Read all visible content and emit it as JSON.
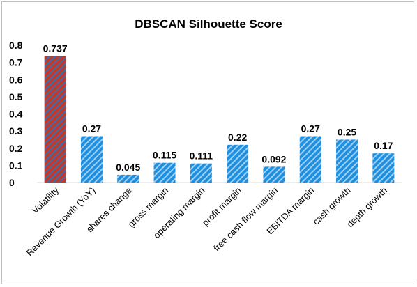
{
  "chart_data": {
    "type": "bar",
    "title": "DBSCAN Silhouette Score",
    "categories": [
      "Volatility",
      "Revenue Growth (YoY)",
      "shares change",
      "gross margin",
      "operating margin",
      "profit margin",
      "free cash flow margin",
      "EBITDA margin",
      "cash growth",
      "depth growth"
    ],
    "values": [
      0.737,
      0.27,
      0.045,
      0.115,
      0.111,
      0.22,
      0.092,
      0.27,
      0.25,
      0.17
    ],
    "data_labels": [
      "0.737",
      "0.27",
      "0.045",
      "0.115",
      "0.111",
      "0.22",
      "0.092",
      "0.27",
      "0.25",
      "0.17"
    ],
    "yticks": [
      "0",
      "0.1",
      "0.2",
      "0.3",
      "0.4",
      "0.5",
      "0.6",
      "0.7",
      "0.8"
    ],
    "ylim": [
      0,
      0.8
    ],
    "xlabel": "",
    "ylabel": "",
    "grid": false,
    "legend": "none",
    "colors": {
      "highlight_fill": "#c0392b",
      "highlight_stripe": "#3a6fb0",
      "bar_fill": "#1f8fe0",
      "bar_stripe": "#9fd0f5"
    }
  }
}
